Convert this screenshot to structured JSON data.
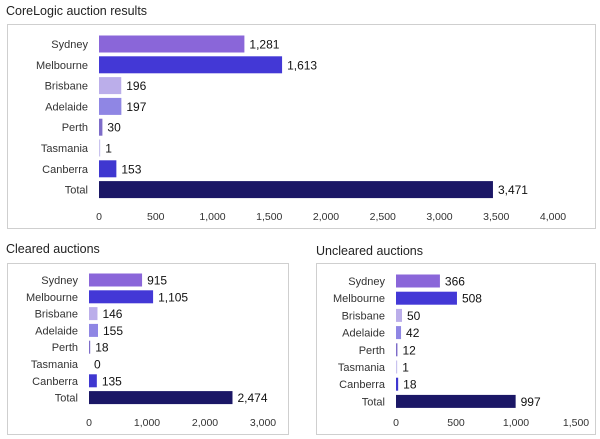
{
  "colors": {
    "Sydney": "#8a66d9",
    "Melbourne": "#4338d6",
    "Brisbane": "#bbaeea",
    "Adelaide": "#8f86e4",
    "Perth": "#7d6cc9",
    "Tasmania": "#c9c3ee",
    "Canberra": "#3f37d0",
    "Total": "#1b1766"
  },
  "chart_data": [
    {
      "type": "bar",
      "title": "CoreLogic auction results",
      "categories": [
        "Sydney",
        "Melbourne",
        "Brisbane",
        "Adelaide",
        "Perth",
        "Tasmania",
        "Canberra",
        "Total"
      ],
      "values": [
        1281,
        1613,
        196,
        197,
        30,
        1,
        153,
        3471
      ],
      "value_labels": [
        "1,281",
        "1,613",
        "196",
        "197",
        "30",
        "1",
        "153",
        "3,471"
      ],
      "xlim": [
        0,
        4000
      ],
      "xticks": [
        0,
        500,
        1000,
        1500,
        2000,
        2500,
        3000,
        3500,
        4000
      ],
      "xtick_labels": [
        "0",
        "500",
        "1,000",
        "1,500",
        "2,000",
        "2,500",
        "3,000",
        "3,500",
        "4,000"
      ],
      "grid": false
    },
    {
      "type": "bar",
      "title": "Cleared auctions",
      "categories": [
        "Sydney",
        "Melbourne",
        "Brisbane",
        "Adelaide",
        "Perth",
        "Tasmania",
        "Canberra",
        "Total"
      ],
      "values": [
        915,
        1105,
        146,
        155,
        18,
        0,
        135,
        2474
      ],
      "value_labels": [
        "915",
        "1,105",
        "146",
        "155",
        "18",
        "0",
        "135",
        "2,474"
      ],
      "xlim": [
        0,
        3000
      ],
      "xticks": [
        0,
        1000,
        2000,
        3000
      ],
      "xtick_labels": [
        "0",
        "1,000",
        "2,000",
        "3,000"
      ],
      "grid": false
    },
    {
      "type": "bar",
      "title": "Uncleared auctions",
      "categories": [
        "Sydney",
        "Melbourne",
        "Brisbane",
        "Adelaide",
        "Perth",
        "Tasmania",
        "Canberra",
        "Total"
      ],
      "values": [
        366,
        508,
        50,
        42,
        12,
        1,
        18,
        997
      ],
      "value_labels": [
        "366",
        "508",
        "50",
        "42",
        "12",
        "1",
        "18",
        "997"
      ],
      "xlim": [
        0,
        1500
      ],
      "xticks": [
        0,
        500,
        1000,
        1500
      ],
      "xtick_labels": [
        "0",
        "500",
        "1,000",
        "1,500"
      ],
      "grid": false
    }
  ]
}
